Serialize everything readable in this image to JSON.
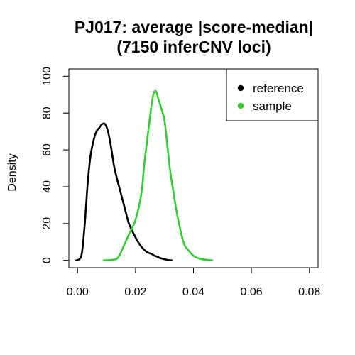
{
  "chart_data": {
    "type": "line",
    "title": "PJ017: average |score-median|",
    "subtitle": "(7150 inferCNV loci)",
    "xlabel": "",
    "ylabel": "Density",
    "xlim": [
      -0.003,
      0.083
    ],
    "ylim": [
      -4,
      104
    ],
    "x_ticks": [
      0.0,
      0.02,
      0.04,
      0.06,
      0.08
    ],
    "x_tick_labels": [
      "0.00",
      "0.02",
      "0.04",
      "0.06",
      "0.08"
    ],
    "y_ticks": [
      0,
      20,
      40,
      60,
      80,
      100
    ],
    "y_tick_labels": [
      "0",
      "20",
      "40",
      "60",
      "80",
      "100"
    ],
    "grid": false,
    "legend_position": "top-right",
    "series": [
      {
        "name": "reference",
        "color": "#000000",
        "x": [
          -0.0005,
          0.0005,
          0.0015,
          0.0025,
          0.0035,
          0.0045,
          0.0055,
          0.0065,
          0.0075,
          0.0085,
          0.0095,
          0.0105,
          0.0115,
          0.0125,
          0.0135,
          0.0145,
          0.0155,
          0.0165,
          0.0175,
          0.0185,
          0.0195,
          0.0205,
          0.0215,
          0.0225,
          0.0235,
          0.0245,
          0.0255,
          0.0265,
          0.0275,
          0.0285,
          0.0295,
          0.0305,
          0.0315,
          0.0325
        ],
        "y": [
          0,
          0.5,
          4,
          20,
          42,
          57,
          65,
          70,
          72,
          74,
          74,
          70,
          62,
          52,
          45,
          39,
          33,
          27,
          21,
          17,
          14,
          11,
          8.5,
          6.5,
          5,
          4,
          3.5,
          2.5,
          2,
          1.2,
          0.8,
          0.4,
          0.1,
          0
        ]
      },
      {
        "name": "sample",
        "color": "#33cc33",
        "x": [
          0.009,
          0.012,
          0.014,
          0.016,
          0.018,
          0.02,
          0.022,
          0.023,
          0.024,
          0.025,
          0.026,
          0.027,
          0.028,
          0.029,
          0.03,
          0.031,
          0.032,
          0.033,
          0.034,
          0.035,
          0.036,
          0.037,
          0.038,
          0.039,
          0.04,
          0.041,
          0.043,
          0.045,
          0.0465
        ],
        "y": [
          0,
          0.3,
          1.5,
          8,
          15,
          22,
          36,
          52,
          65,
          78,
          89,
          92,
          87,
          82,
          76,
          62,
          48,
          38,
          28,
          20,
          13,
          8,
          6,
          4,
          2.5,
          1.5,
          0.6,
          0.2,
          0
        ]
      }
    ]
  }
}
